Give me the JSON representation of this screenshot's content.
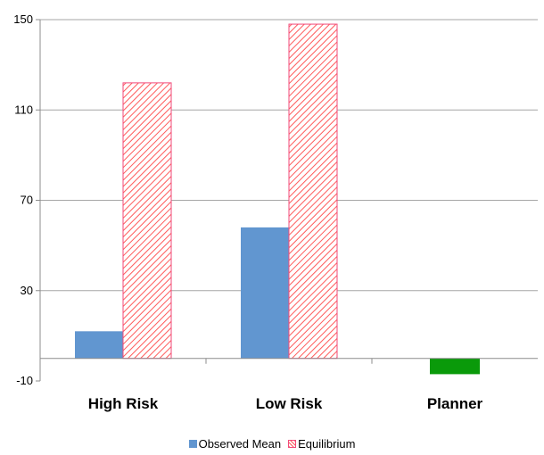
{
  "chart_data": {
    "type": "bar",
    "categories": [
      "High Risk",
      "Low Risk",
      "Planner"
    ],
    "series": [
      {
        "name": "Observed Mean",
        "values": [
          12,
          58,
          null
        ],
        "color": "#6196d0",
        "pattern": "solid"
      },
      {
        "name": "Equilibrium",
        "values": [
          122,
          148,
          null
        ],
        "color": "#ff5a5a",
        "pattern": "diagonal-hatch"
      }
    ],
    "extra_bars": [
      {
        "category": "Planner",
        "value": -7,
        "color": "#0a9a0a"
      }
    ],
    "ylim": [
      -10,
      150
    ],
    "yticks": [
      -10,
      30,
      70,
      110,
      150
    ],
    "grid": true,
    "legend_position": "bottom-center",
    "title": "",
    "xlabel": "",
    "ylabel": ""
  }
}
